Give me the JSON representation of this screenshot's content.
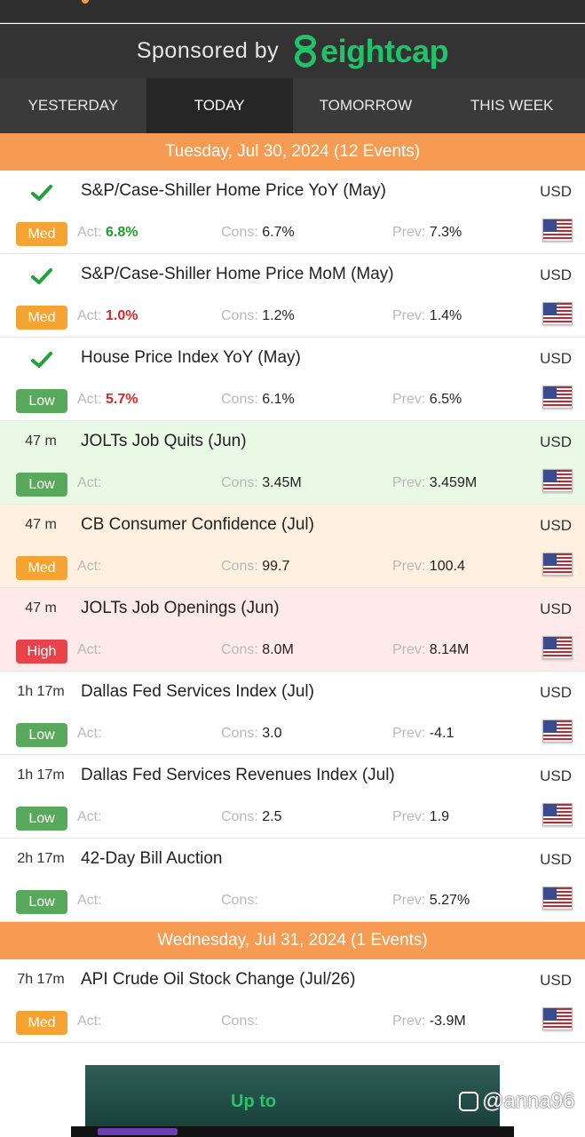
{
  "sponsor": {
    "label": "Sponsored by",
    "brand": "eightcap",
    "brand_color": "#22c26b"
  },
  "tabs": [
    {
      "label": "YESTERDAY",
      "active": false
    },
    {
      "label": "TODAY",
      "active": true
    },
    {
      "label": "TOMORROW",
      "active": false
    },
    {
      "label": "THIS WEEK",
      "active": false
    }
  ],
  "dates": [
    {
      "label": "Tuesday, Jul 30, 2024 (12 Events)"
    },
    {
      "label": "Wednesday, Jul 31, 2024 (1 Events)"
    }
  ],
  "labels": {
    "act": "Act:",
    "cons": "Cons:",
    "prev": "Prev:"
  },
  "events": [
    {
      "time": "",
      "done": true,
      "name": "S&P/Case-Shiller Home Price YoY (May)",
      "currency": "USD",
      "impact": "Med",
      "actual": "6.8%",
      "actual_color": "green",
      "consensus": "6.7%",
      "previous": "7.3%",
      "bg": "none"
    },
    {
      "time": "",
      "done": true,
      "name": "S&P/Case-Shiller Home Price MoM (May)",
      "currency": "USD",
      "impact": "Med",
      "actual": "1.0%",
      "actual_color": "red",
      "consensus": "1.2%",
      "previous": "1.4%",
      "bg": "none"
    },
    {
      "time": "",
      "done": true,
      "name": "House Price Index YoY (May)",
      "currency": "USD",
      "impact": "Low",
      "actual": "5.7%",
      "actual_color": "red",
      "consensus": "6.1%",
      "previous": "6.5%",
      "bg": "none"
    },
    {
      "time": "47 m",
      "done": false,
      "name": "JOLTs Job Quits (Jun)",
      "currency": "USD",
      "impact": "Low",
      "actual": "",
      "consensus": "3.45M",
      "previous": "3.459M",
      "bg": "green"
    },
    {
      "time": "47 m",
      "done": false,
      "name": "CB Consumer Confidence (Jul)",
      "currency": "USD",
      "impact": "Med",
      "actual": "",
      "consensus": "99.7",
      "previous": "100.4",
      "bg": "orange"
    },
    {
      "time": "47 m",
      "done": false,
      "name": "JOLTs Job Openings (Jun)",
      "currency": "USD",
      "impact": "High",
      "actual": "",
      "consensus": "8.0M",
      "previous": "8.14M",
      "bg": "red"
    },
    {
      "time": "1h 17m",
      "done": false,
      "name": "Dallas Fed Services Index (Jul)",
      "currency": "USD",
      "impact": "Low",
      "actual": "",
      "consensus": "3.0",
      "previous": "-4.1",
      "bg": "none"
    },
    {
      "time": "1h 17m",
      "done": false,
      "name": "Dallas Fed Services Revenues Index (Jul)",
      "currency": "USD",
      "impact": "Low",
      "actual": "",
      "consensus": "2.5",
      "previous": "1.9",
      "bg": "none"
    },
    {
      "time": "2h 17m",
      "done": false,
      "name": "42-Day Bill Auction",
      "currency": "USD",
      "impact": "Low",
      "actual": "",
      "consensus": "",
      "previous": "5.27%",
      "bg": "none"
    },
    {
      "time": "7h 17m",
      "done": false,
      "name": "API Crude Oil Stock Change (Jul/26)",
      "currency": "USD",
      "impact": "Med",
      "actual": "",
      "consensus": "",
      "previous": "-3.9M",
      "bg": "none"
    }
  ],
  "ad": {
    "text": "Up to"
  },
  "watermark": {
    "text": "@anna96"
  }
}
